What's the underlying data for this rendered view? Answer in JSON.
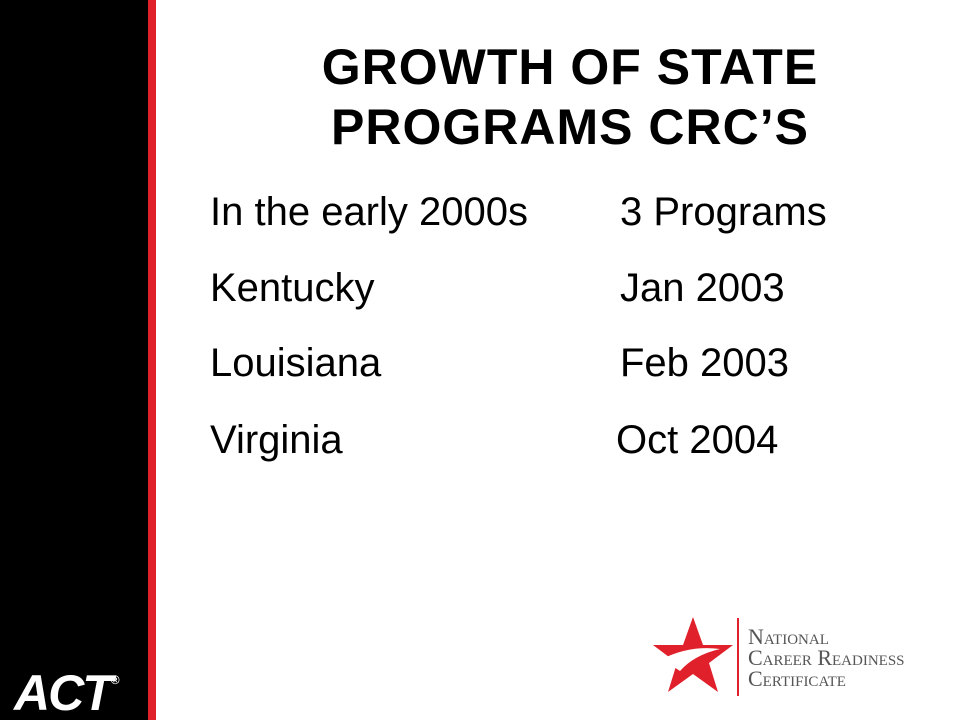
{
  "title": {
    "line1": "GROWTH OF STATE",
    "line2": "PROGRAMS CRC’S"
  },
  "rows": [
    [
      "In the early 2000s",
      "3 Programs"
    ],
    [
      "Kentucky",
      "Jan 2003"
    ],
    [
      "Louisiana",
      "Feb 2003"
    ],
    [
      "Virginia",
      "Oct 2004"
    ]
  ],
  "logos": {
    "act": "ACT",
    "act_mark": "®",
    "ncrc": [
      "National",
      "Career Readiness",
      "Certificate"
    ]
  }
}
